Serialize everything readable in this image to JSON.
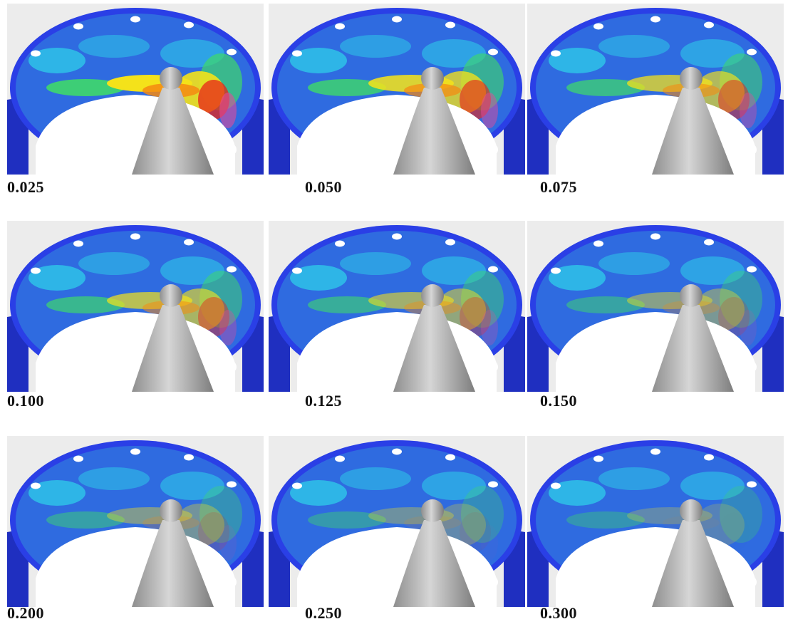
{
  "panels": [
    {
      "label": "0.025",
      "intensity": 1.0
    },
    {
      "label": "0.050",
      "intensity": 0.85
    },
    {
      "label": "0.075",
      "intensity": 0.7
    },
    {
      "label": "0.100",
      "intensity": 0.65
    },
    {
      "label": "0.125",
      "intensity": 0.5
    },
    {
      "label": "0.150",
      "intensity": 0.35
    },
    {
      "label": "0.200",
      "intensity": 0.3
    },
    {
      "label": "0.250",
      "intensity": 0.2
    },
    {
      "label": "0.300",
      "intensity": 0.12
    }
  ],
  "colors": {
    "background": "#ececec",
    "shell": "#2a3fe6",
    "shell_dark": "#1f2fc0",
    "wall_base": "#2f6be0",
    "cyan": "#2ec8e8",
    "green": "#3fd96a",
    "yellow": "#f4e21a",
    "orange": "#f58a12",
    "red": "#e8231a",
    "magenta": "#e24a9a",
    "nozzle": "#b9b9b9",
    "hole": "#ffffff"
  }
}
